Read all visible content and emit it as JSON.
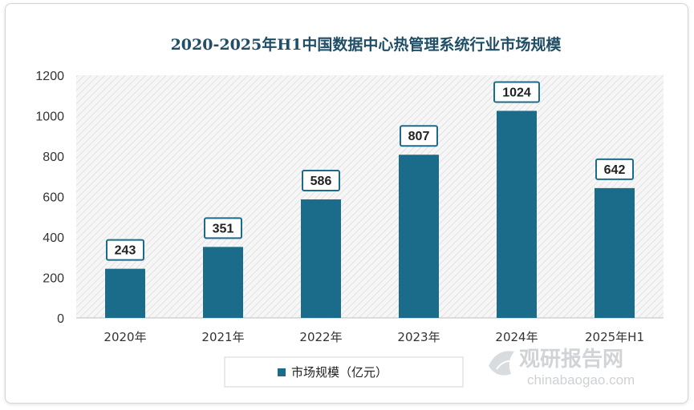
{
  "chart_data": {
    "type": "bar",
    "title": "2020-2025年H1中国数据中心热管理系统行业市场规模",
    "categories": [
      "2020年",
      "2021年",
      "2022年",
      "2023年",
      "2024年",
      "2025年H1"
    ],
    "series": [
      {
        "name": "市场规模（亿元）",
        "values": [
          243,
          351,
          586,
          807,
          1024,
          642
        ]
      }
    ],
    "ylim": [
      0,
      1200
    ],
    "yticks": [
      0,
      200,
      400,
      600,
      800,
      1000,
      1200
    ],
    "grid": false,
    "plot_background": "diagonal-hatch",
    "legend": "bottom",
    "data_labels": true,
    "colors": {
      "bar": "#1b6b8a",
      "title": "#1f4e66",
      "label_border": "#1b6b8a"
    }
  },
  "watermark": {
    "name": "观研报告网",
    "url": "chinabaogao.com"
  }
}
